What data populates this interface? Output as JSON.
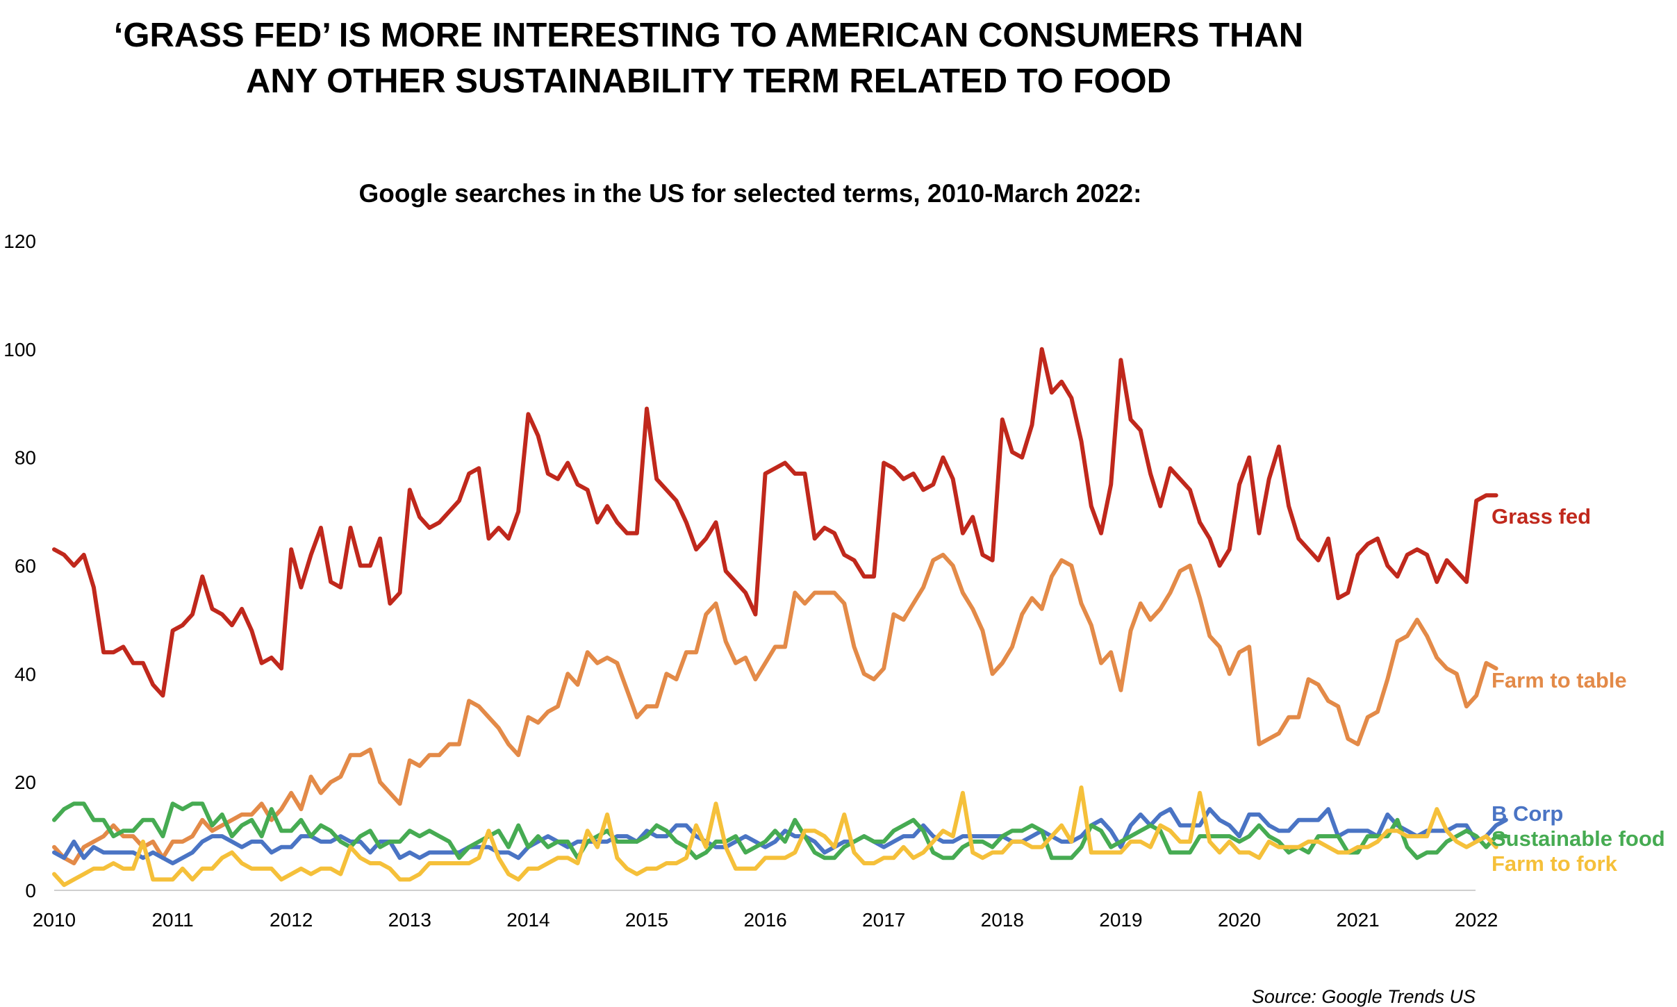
{
  "title_lines": [
    "‘GRASS FED’ IS MORE INTERESTING TO AMERICAN CONSUMERS THAN",
    "ANY OTHER SUSTAINABILITY TERM RELATED TO FOOD"
  ],
  "source": "Source: Google Trends US",
  "colors": {
    "grass_fed": "#c0281c",
    "farm_to_table": "#e38a48",
    "b_corp": "#4a74c4",
    "sustainable_food": "#46ab52",
    "farm_to_fork": "#f5c03a"
  },
  "chart_data": {
    "type": "line",
    "title": "Google searches in the US for selected terms, 2010-March 2022:",
    "x_ticks": [
      "2010",
      "2011",
      "2012",
      "2013",
      "2014",
      "2015",
      "2016",
      "2017",
      "2018",
      "2019",
      "2020",
      "2021",
      "2022"
    ],
    "y_ticks": [
      "0",
      "20",
      "40",
      "60",
      "80",
      "100",
      "120"
    ],
    "ylim": [
      0,
      120
    ],
    "xlim": [
      "2010-01",
      "2022-03"
    ],
    "grid": false,
    "legend": "labels at right end of each line",
    "series": [
      {
        "name": "Grass fed",
        "key": "grass_fed",
        "values": [
          63,
          62,
          60,
          62,
          56,
          44,
          44,
          45,
          42,
          42,
          38,
          36,
          48,
          49,
          51,
          58,
          52,
          51,
          49,
          52,
          48,
          42,
          43,
          41,
          63,
          56,
          62,
          67,
          57,
          56,
          67,
          60,
          60,
          65,
          53,
          55,
          74,
          69,
          67,
          68,
          70,
          72,
          77,
          78,
          65,
          67,
          65,
          70,
          88,
          84,
          77,
          76,
          79,
          75,
          74,
          68,
          71,
          68,
          66,
          66,
          89,
          76,
          74,
          72,
          68,
          63,
          65,
          68,
          59,
          57,
          55,
          51,
          77,
          78,
          79,
          77,
          77,
          65,
          67,
          66,
          62,
          61,
          58,
          58,
          79,
          78,
          76,
          77,
          74,
          75,
          80,
          76,
          66,
          69,
          62,
          61,
          87,
          81,
          80,
          86,
          100,
          92,
          94,
          91,
          83,
          71,
          66,
          75,
          98,
          87,
          85,
          77,
          71,
          78,
          76,
          74,
          68,
          65,
          60,
          63,
          75,
          80,
          66,
          76,
          82,
          71,
          65,
          63,
          61,
          65,
          54,
          55,
          62,
          64,
          65,
          60,
          58,
          62,
          63,
          62,
          57,
          61,
          59,
          57,
          72,
          73,
          73
        ]
      },
      {
        "name": "Farm to table",
        "key": "farm_to_table",
        "values": [
          8,
          6,
          5,
          8,
          9,
          10,
          12,
          10,
          10,
          8,
          9,
          6,
          9,
          9,
          10,
          13,
          11,
          12,
          13,
          14,
          14,
          16,
          13,
          15,
          18,
          15,
          21,
          18,
          20,
          21,
          25,
          25,
          26,
          20,
          18,
          16,
          24,
          23,
          25,
          25,
          27,
          27,
          35,
          34,
          32,
          30,
          27,
          25,
          32,
          31,
          33,
          34,
          40,
          38,
          44,
          42,
          43,
          42,
          37,
          32,
          34,
          34,
          40,
          39,
          44,
          44,
          51,
          53,
          46,
          42,
          43,
          39,
          42,
          45,
          45,
          55,
          53,
          55,
          55,
          55,
          53,
          45,
          40,
          39,
          41,
          51,
          50,
          53,
          56,
          61,
          62,
          60,
          55,
          52,
          48,
          40,
          42,
          45,
          51,
          54,
          52,
          58,
          61,
          60,
          53,
          49,
          42,
          44,
          37,
          48,
          53,
          50,
          52,
          55,
          59,
          60,
          54,
          47,
          45,
          40,
          44,
          45,
          27,
          28,
          29,
          32,
          32,
          39,
          38,
          35,
          34,
          28,
          27,
          32,
          33,
          39,
          46,
          47,
          50,
          47,
          43,
          41,
          40,
          34,
          36,
          42,
          41
        ]
      },
      {
        "name": "B Corp",
        "key": "b_corp",
        "values": [
          7,
          6,
          9,
          6,
          8,
          7,
          7,
          7,
          7,
          6,
          7,
          6,
          5,
          6,
          7,
          9,
          10,
          10,
          9,
          8,
          9,
          9,
          7,
          8,
          8,
          10,
          10,
          9,
          9,
          10,
          9,
          9,
          7,
          9,
          9,
          6,
          7,
          6,
          7,
          7,
          7,
          7,
          8,
          8,
          8,
          7,
          7,
          6,
          8,
          9,
          10,
          9,
          8,
          9,
          9,
          9,
          9,
          10,
          10,
          9,
          11,
          10,
          10,
          12,
          12,
          10,
          9,
          8,
          8,
          9,
          10,
          9,
          8,
          9,
          11,
          10,
          10,
          9,
          7,
          8,
          9,
          9,
          10,
          9,
          8,
          9,
          10,
          10,
          12,
          10,
          9,
          9,
          10,
          10,
          10,
          10,
          10,
          9,
          9,
          10,
          11,
          10,
          9,
          9,
          10,
          12,
          13,
          11,
          8,
          12,
          14,
          12,
          14,
          15,
          12,
          12,
          12,
          15,
          13,
          12,
          10,
          14,
          14,
          12,
          11,
          11,
          13,
          13,
          13,
          15,
          10,
          11,
          11,
          11,
          10,
          14,
          12,
          11,
          10,
          11,
          11,
          11,
          12,
          12,
          9,
          10,
          12,
          13
        ]
      },
      {
        "name": "Sustainable food",
        "key": "sustainable_food",
        "values": [
          13,
          15,
          16,
          16,
          13,
          13,
          10,
          11,
          11,
          13,
          13,
          10,
          16,
          15,
          16,
          16,
          12,
          14,
          10,
          12,
          13,
          10,
          15,
          11,
          11,
          13,
          10,
          12,
          11,
          9,
          8,
          10,
          11,
          8,
          9,
          9,
          11,
          10,
          11,
          10,
          9,
          6,
          8,
          9,
          10,
          11,
          8,
          12,
          8,
          10,
          8,
          9,
          9,
          6,
          9,
          10,
          11,
          9,
          9,
          9,
          10,
          12,
          11,
          9,
          8,
          6,
          7,
          9,
          9,
          10,
          7,
          8,
          9,
          11,
          9,
          13,
          10,
          7,
          6,
          6,
          8,
          9,
          10,
          9,
          9,
          11,
          12,
          13,
          11,
          7,
          6,
          6,
          8,
          9,
          9,
          8,
          10,
          11,
          11,
          12,
          11,
          6,
          6,
          6,
          8,
          12,
          11,
          8,
          9,
          10,
          11,
          12,
          11,
          7,
          7,
          7,
          10,
          10,
          10,
          10,
          9,
          10,
          12,
          10,
          9,
          7,
          8,
          7,
          10,
          10,
          10,
          7,
          7,
          10,
          10,
          10,
          13,
          8,
          6,
          7,
          7,
          9,
          10,
          11,
          10,
          8,
          10,
          10
        ]
      },
      {
        "name": "Farm to fork",
        "key": "farm_to_fork",
        "values": [
          3,
          1,
          2,
          3,
          4,
          4,
          5,
          4,
          4,
          9,
          2,
          2,
          2,
          4,
          2,
          4,
          4,
          6,
          7,
          5,
          4,
          4,
          4,
          2,
          3,
          4,
          3,
          4,
          4,
          3,
          8,
          6,
          5,
          5,
          4,
          2,
          2,
          3,
          5,
          5,
          5,
          5,
          5,
          6,
          11,
          6,
          3,
          2,
          4,
          4,
          5,
          6,
          6,
          5,
          11,
          8,
          14,
          6,
          4,
          3,
          4,
          4,
          5,
          5,
          6,
          12,
          8,
          16,
          8,
          4,
          4,
          4,
          6,
          6,
          6,
          7,
          11,
          11,
          10,
          8,
          14,
          7,
          5,
          5,
          6,
          6,
          8,
          6,
          7,
          9,
          11,
          10,
          18,
          7,
          6,
          7,
          7,
          9,
          9,
          8,
          8,
          10,
          12,
          9,
          19,
          7,
          7,
          7,
          7,
          9,
          9,
          8,
          12,
          11,
          9,
          9,
          18,
          9,
          7,
          9,
          7,
          7,
          6,
          9,
          8,
          8,
          8,
          9,
          9,
          8,
          7,
          7,
          8,
          8,
          9,
          11,
          11,
          10,
          10,
          10,
          15,
          11,
          9,
          8,
          9,
          10,
          8
        ]
      }
    ]
  }
}
